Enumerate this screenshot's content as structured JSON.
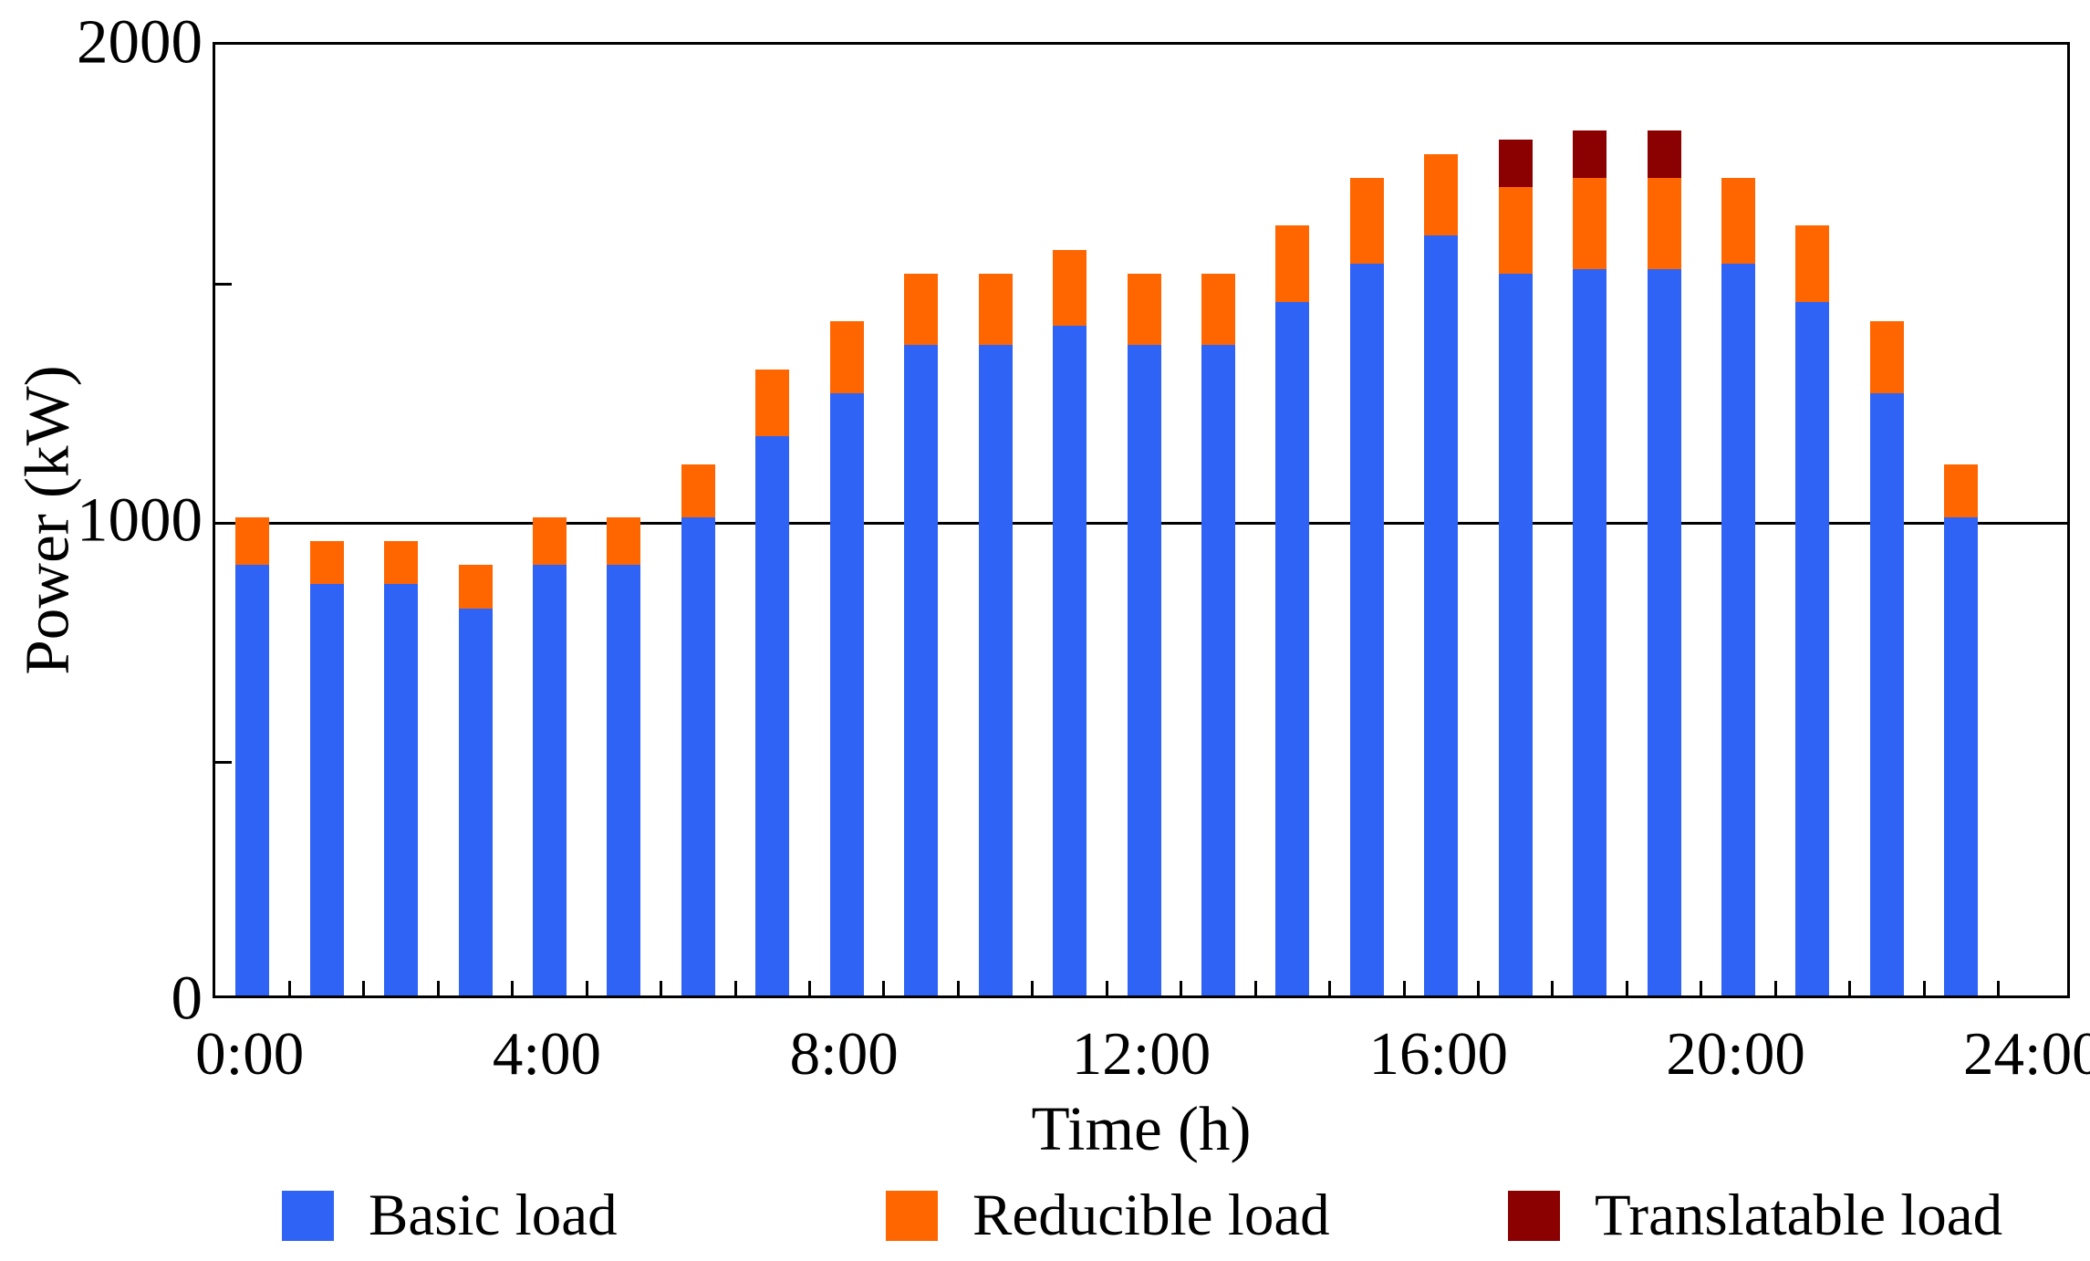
{
  "chart_data": {
    "type": "bar",
    "stacked": true,
    "xlabel": "Time (h)",
    "ylabel": "Power (kW)",
    "ylim": [
      0,
      2000
    ],
    "y_tick_labels": [
      "0",
      "1000",
      "2000"
    ],
    "y_tick_values": [
      0,
      1000,
      2000
    ],
    "y_minor_tick_values": [
      500,
      1500
    ],
    "grid_lines_y": [
      1000
    ],
    "grid_on": "y-1000-only",
    "legend_position": "bottom",
    "categories": [
      "0:00",
      "1:00",
      "2:00",
      "3:00",
      "4:00",
      "5:00",
      "6:00",
      "7:00",
      "8:00",
      "9:00",
      "10:00",
      "11:00",
      "12:00",
      "13:00",
      "14:00",
      "15:00",
      "16:00",
      "17:00",
      "18:00",
      "19:00",
      "20:00",
      "21:00",
      "22:00",
      "23:00"
    ],
    "x_axis_slots": 25,
    "x_tick_labels": [
      "0:00",
      "4:00",
      "8:00",
      "12:00",
      "16:00",
      "20:00",
      "24:00"
    ],
    "x_tick_label_hours": [
      0,
      4,
      8,
      12,
      16,
      20,
      24
    ],
    "series": [
      {
        "name": "Basic load",
        "color": "#2E63F6",
        "values": [
          900,
          860,
          860,
          810,
          900,
          900,
          1000,
          1170,
          1260,
          1360,
          1360,
          1400,
          1360,
          1360,
          1450,
          1530,
          1590,
          1510,
          1520,
          1520,
          1530,
          1450,
          1260,
          1000
        ]
      },
      {
        "name": "Reducible load",
        "color": "#FF6600",
        "values": [
          100,
          90,
          90,
          90,
          100,
          100,
          110,
          140,
          150,
          150,
          150,
          160,
          150,
          150,
          160,
          180,
          170,
          180,
          190,
          190,
          180,
          160,
          150,
          110
        ]
      },
      {
        "name": "Translatable load",
        "color": "#8B0000",
        "values": [
          0,
          0,
          0,
          0,
          0,
          0,
          0,
          0,
          0,
          0,
          0,
          0,
          0,
          0,
          0,
          0,
          0,
          100,
          100,
          100,
          0,
          0,
          0,
          0
        ]
      }
    ],
    "totals": [
      1000,
      950,
      950,
      900,
      1000,
      1000,
      1110,
      1310,
      1410,
      1510,
      1510,
      1560,
      1510,
      1510,
      1610,
      1710,
      1760,
      1790,
      1810,
      1810,
      1710,
      1610,
      1410,
      1110
    ]
  },
  "legend": {
    "items": [
      {
        "label": "Basic load",
        "color": "#2E63F6"
      },
      {
        "label": "Reducible load",
        "color": "#FF6600"
      },
      {
        "label": "Translatable load",
        "color": "#8B0000"
      }
    ]
  },
  "axis_color": "#000000"
}
